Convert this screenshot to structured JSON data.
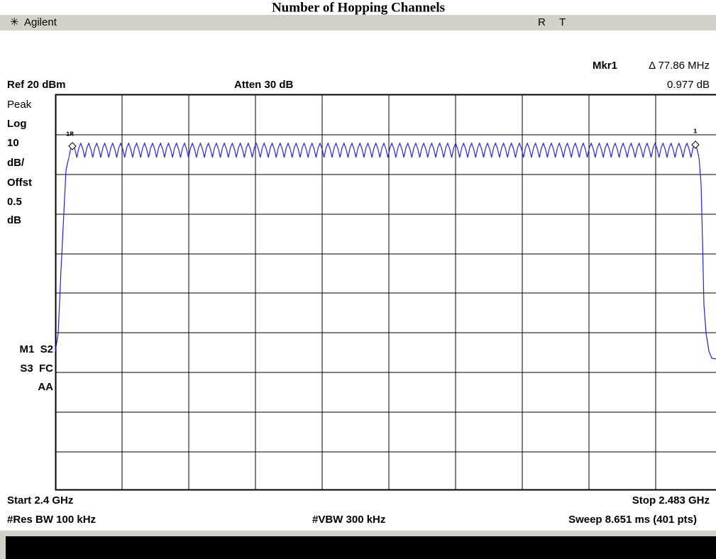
{
  "title": "Number of Hopping Channels",
  "header": {
    "brand": "Agilent",
    "status": [
      "R",
      "T"
    ]
  },
  "marker": {
    "name": "Mkr1",
    "delta": "Δ 77.86 MHz",
    "level": "0.977 dB",
    "labels": [
      "1R",
      "1"
    ]
  },
  "settings": {
    "ref": "Ref 20 dBm",
    "atten": "Atten 30 dB"
  },
  "left_labels": [
    "Peak",
    "Log",
    "10",
    "dB/",
    "Offst",
    "0.5",
    "dB"
  ],
  "mode_labels": [
    "M1  S2",
    "S3  FC",
    "AA"
  ],
  "footer": {
    "start": "Start 2.4 GHz",
    "stop": "Stop 2.483 GHz",
    "rbw": "#Res BW 100 kHz",
    "vbw": "#VBW 300 kHz",
    "sweep": "Sweep 8.651 ms (401 pts)"
  }
}
